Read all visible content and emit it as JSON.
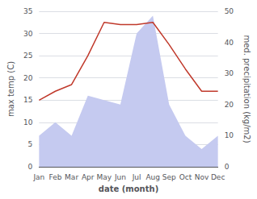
{
  "chart_data": {
    "type": "line",
    "categories": [
      "Jan",
      "Feb",
      "Mar",
      "Apr",
      "May",
      "Jun",
      "Jul",
      "Aug",
      "Sep",
      "Oct",
      "Nov",
      "Dec"
    ],
    "series": [
      {
        "type": "area",
        "color": "#c5caf0",
        "values": [
          7,
          10,
          7,
          16,
          15,
          14,
          30,
          34,
          14,
          7,
          4,
          7
        ]
      },
      {
        "type": "line",
        "color": "#c0392b",
        "values": [
          15,
          17,
          18.5,
          25,
          32.5,
          32,
          32,
          32.5,
          27.5,
          22,
          17,
          17
        ]
      }
    ],
    "xlabel": "date (month)",
    "ylabel": "max temp (C)",
    "y2label": "med. precipitation (kg/m2)",
    "ylim": [
      0,
      35
    ],
    "yticks": [
      0,
      5,
      10,
      15,
      20,
      25,
      30,
      35
    ],
    "y2lim": [
      0,
      50
    ],
    "y2ticks": [
      0,
      10,
      20,
      30,
      40,
      50
    ],
    "grid": true
  }
}
